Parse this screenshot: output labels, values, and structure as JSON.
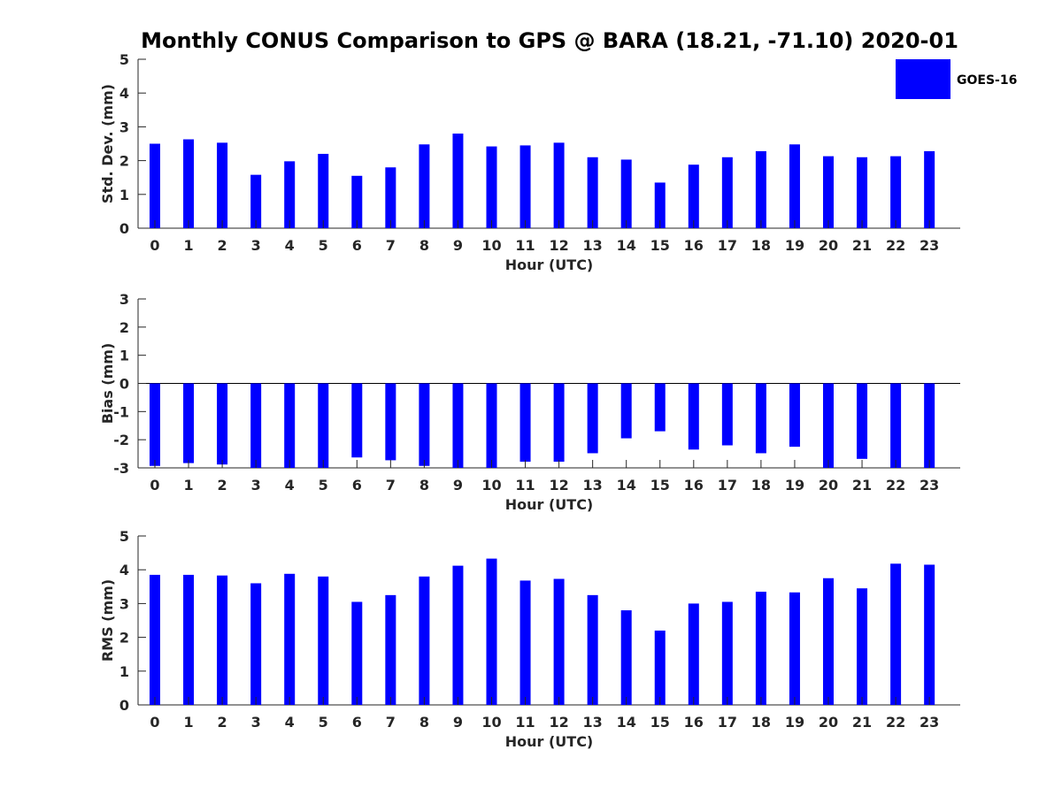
{
  "chart_data": {
    "title": "Monthly CONUS Comparison to GPS @ BARA (18.21, -71.10) 2020-01",
    "legend": {
      "label": "GOES-16",
      "color": "#0000ff",
      "placement": "top-right"
    },
    "bar_color": "#0000ff",
    "panels": [
      {
        "type": "bar",
        "ylabel": "Std. Dev. (mm)",
        "xlabel": "Hour (UTC)",
        "ylim": [
          0,
          5
        ],
        "yticks": [
          0,
          1,
          2,
          3,
          4,
          5
        ],
        "categories": [
          "0",
          "1",
          "2",
          "3",
          "4",
          "5",
          "6",
          "7",
          "8",
          "9",
          "10",
          "11",
          "12",
          "13",
          "14",
          "15",
          "16",
          "17",
          "18",
          "19",
          "20",
          "21",
          "22",
          "23"
        ],
        "values": [
          2.5,
          2.63,
          2.53,
          1.58,
          1.98,
          2.2,
          1.55,
          1.8,
          2.48,
          2.8,
          2.42,
          2.45,
          2.53,
          2.1,
          2.03,
          1.35,
          1.88,
          2.1,
          2.28,
          2.48,
          2.13,
          2.1,
          2.13,
          2.28
        ]
      },
      {
        "type": "bar",
        "ylabel": "Bias (mm)",
        "xlabel": "Hour (UTC)",
        "ylim": [
          -3,
          3
        ],
        "yticks": [
          -3,
          -2,
          -1,
          0,
          1,
          2,
          3
        ],
        "categories": [
          "0",
          "1",
          "2",
          "3",
          "4",
          "5",
          "6",
          "7",
          "8",
          "9",
          "10",
          "11",
          "12",
          "13",
          "14",
          "15",
          "16",
          "17",
          "18",
          "19",
          "20",
          "21",
          "22",
          "23"
        ],
        "values": [
          -2.93,
          -2.83,
          -2.88,
          -3.0,
          -3.0,
          -3.0,
          -2.63,
          -2.73,
          -2.93,
          -3.0,
          -3.0,
          -2.78,
          -2.78,
          -2.48,
          -1.95,
          -1.7,
          -2.35,
          -2.2,
          -2.48,
          -2.25,
          -3.0,
          -2.68,
          -3.0,
          -3.0
        ]
      },
      {
        "type": "bar",
        "ylabel": "RMS (mm)",
        "xlabel": "Hour (UTC)",
        "ylim": [
          0,
          5
        ],
        "yticks": [
          0,
          1,
          2,
          3,
          4,
          5
        ],
        "categories": [
          "0",
          "1",
          "2",
          "3",
          "4",
          "5",
          "6",
          "7",
          "8",
          "9",
          "10",
          "11",
          "12",
          "13",
          "14",
          "15",
          "16",
          "17",
          "18",
          "19",
          "20",
          "21",
          "22",
          "23"
        ],
        "values": [
          3.85,
          3.85,
          3.83,
          3.6,
          3.88,
          3.8,
          3.05,
          3.25,
          3.8,
          4.12,
          4.33,
          3.68,
          3.73,
          3.25,
          2.8,
          2.2,
          3.0,
          3.05,
          3.35,
          3.33,
          3.75,
          3.45,
          4.18,
          4.15
        ]
      }
    ]
  }
}
